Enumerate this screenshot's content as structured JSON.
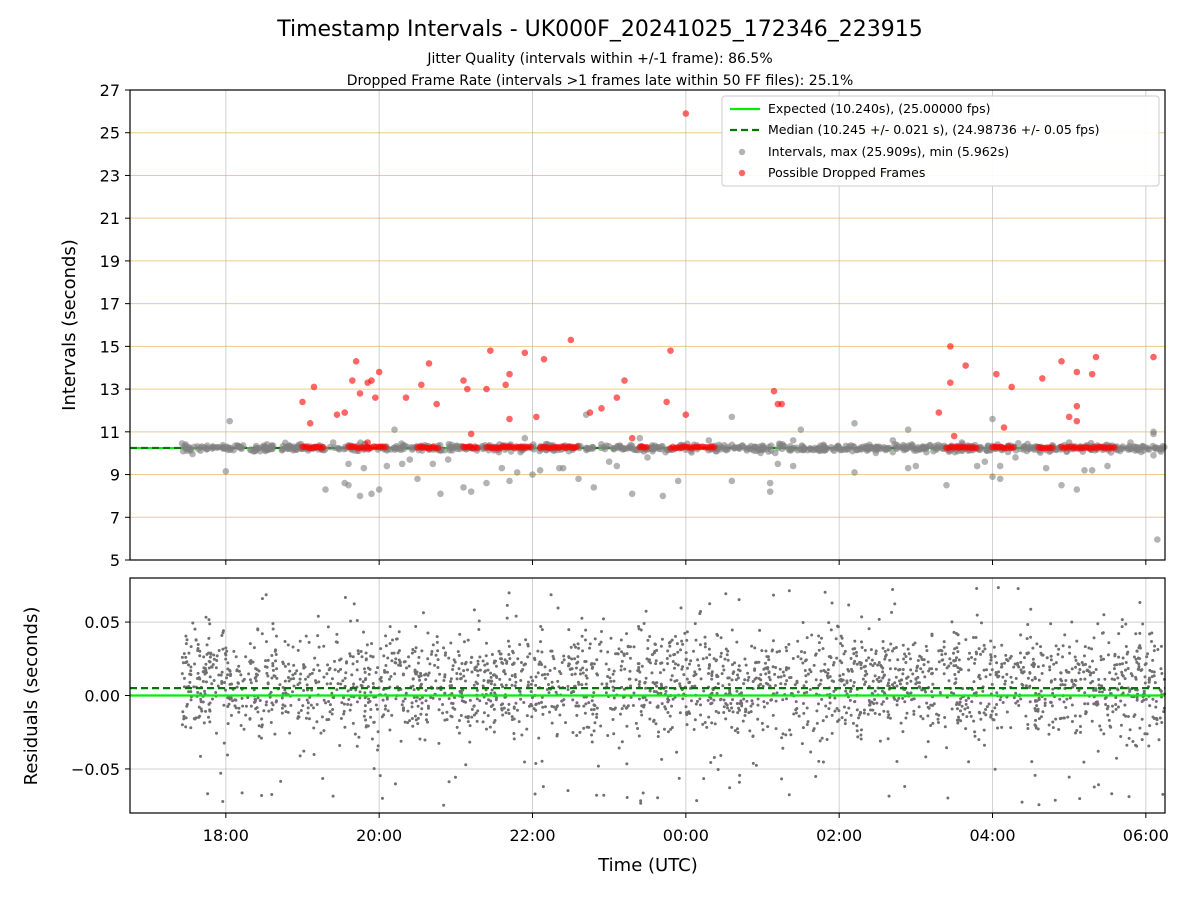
{
  "chart_data": [
    {
      "type": "scatter",
      "title": "Timestamp Intervals - UK000F_20241025_172346_223915",
      "subtitle_1": "Jitter Quality (intervals within +/-1 frame): 86.5%",
      "subtitle_2": "Dropped Frame Rate (intervals >1 frames late within 50 FF files): 25.1%",
      "ylabel": "Intervals (seconds)",
      "ylim": [
        5,
        27
      ],
      "yticks": [
        5,
        7,
        9,
        11,
        13,
        15,
        17,
        19,
        21,
        23,
        25,
        27
      ],
      "xlim_hours": [
        16.75,
        30.25
      ],
      "grid": true,
      "legend_position": "top-right",
      "expected": {
        "value": 10.24,
        "label": "Expected (10.240s), (25.00000 fps)",
        "color": "#00ee00"
      },
      "median": {
        "value": 10.245,
        "label": "Median (10.245 +/- 0.021 s), (24.98736 +/- 0.05 fps)",
        "color": "#007700"
      },
      "intervals_series": {
        "label": "Intervals, max (25.909s), min (5.962s)",
        "color": "#808080",
        "max": 25.909,
        "min": 5.962,
        "points": [
          [
            18.05,
            11.5
          ],
          [
            18.0,
            9.15
          ],
          [
            19.4,
            10.5
          ],
          [
            19.6,
            9.5
          ],
          [
            19.8,
            9.3
          ],
          [
            19.9,
            8.1
          ],
          [
            20.0,
            8.3
          ],
          [
            20.1,
            9.4
          ],
          [
            20.2,
            11.1
          ],
          [
            20.4,
            9.7
          ],
          [
            20.5,
            8.8
          ],
          [
            20.7,
            9.5
          ],
          [
            20.8,
            8.1
          ],
          [
            21.1,
            8.4
          ],
          [
            21.2,
            8.2
          ],
          [
            21.4,
            8.6
          ],
          [
            21.6,
            9.3
          ],
          [
            21.8,
            9.1
          ],
          [
            21.9,
            10.7
          ],
          [
            22.0,
            9.0
          ],
          [
            22.1,
            9.2
          ],
          [
            22.4,
            9.3
          ],
          [
            22.6,
            8.8
          ],
          [
            22.7,
            11.8
          ],
          [
            22.8,
            8.4
          ],
          [
            23.0,
            9.6
          ],
          [
            23.1,
            9.4
          ],
          [
            23.3,
            8.1
          ],
          [
            23.4,
            10.7
          ],
          [
            23.7,
            8.0
          ],
          [
            23.9,
            8.7
          ],
          [
            24.3,
            10.6
          ],
          [
            24.6,
            11.7
          ],
          [
            24.6,
            8.7
          ],
          [
            25.1,
            8.6
          ],
          [
            25.1,
            8.2
          ],
          [
            25.2,
            9.5
          ],
          [
            25.4,
            9.4
          ],
          [
            25.5,
            11.1
          ],
          [
            25.4,
            10.6
          ],
          [
            26.2,
            11.4
          ],
          [
            26.2,
            9.1
          ],
          [
            26.7,
            10.6
          ],
          [
            26.9,
            11.1
          ],
          [
            26.9,
            9.3
          ],
          [
            27.0,
            9.4
          ],
          [
            27.4,
            8.5
          ],
          [
            27.6,
            10.5
          ],
          [
            27.8,
            9.4
          ],
          [
            27.9,
            9.6
          ],
          [
            28.0,
            11.6
          ],
          [
            28.0,
            8.9
          ],
          [
            28.1,
            9.4
          ],
          [
            28.1,
            8.8
          ],
          [
            28.3,
            9.8
          ],
          [
            28.7,
            9.3
          ],
          [
            28.9,
            8.5
          ],
          [
            29.0,
            10.5
          ],
          [
            29.1,
            8.3
          ],
          [
            29.2,
            9.2
          ],
          [
            29.3,
            9.2
          ],
          [
            29.5,
            9.4
          ],
          [
            29.8,
            10.5
          ],
          [
            30.1,
            11.0
          ],
          [
            30.1,
            10.9
          ],
          [
            30.1,
            9.9
          ],
          [
            30.15,
            5.96
          ],
          [
            19.3,
            8.3
          ],
          [
            19.55,
            8.6
          ],
          [
            19.6,
            8.5
          ],
          [
            19.75,
            8.0
          ],
          [
            20.3,
            9.5
          ],
          [
            20.9,
            9.7
          ],
          [
            21.7,
            8.7
          ],
          [
            22.35,
            9.3
          ],
          [
            23.2,
            10.2
          ],
          [
            23.5,
            9.8
          ],
          [
            24.0,
            10.3
          ]
        ]
      },
      "dropped_series": {
        "label": "Possible Dropped Frames",
        "color": "#ff0000",
        "points": [
          [
            19.0,
            12.4
          ],
          [
            19.15,
            13.1
          ],
          [
            19.1,
            11.4
          ],
          [
            19.45,
            11.8
          ],
          [
            19.55,
            11.9
          ],
          [
            19.65,
            13.4
          ],
          [
            19.7,
            14.3
          ],
          [
            19.75,
            12.8
          ],
          [
            19.85,
            13.3
          ],
          [
            19.9,
            13.4
          ],
          [
            19.95,
            12.6
          ],
          [
            20.0,
            13.8
          ],
          [
            19.85,
            10.5
          ],
          [
            20.35,
            12.6
          ],
          [
            20.55,
            13.2
          ],
          [
            20.65,
            14.2
          ],
          [
            20.75,
            12.3
          ],
          [
            21.1,
            13.4
          ],
          [
            21.15,
            13.0
          ],
          [
            21.2,
            10.9
          ],
          [
            21.4,
            13.0
          ],
          [
            21.45,
            14.8
          ],
          [
            21.65,
            13.2
          ],
          [
            21.7,
            13.7
          ],
          [
            21.7,
            11.6
          ],
          [
            21.9,
            14.7
          ],
          [
            22.05,
            11.7
          ],
          [
            22.15,
            14.4
          ],
          [
            22.5,
            15.3
          ],
          [
            22.75,
            11.9
          ],
          [
            22.9,
            12.1
          ],
          [
            23.1,
            12.6
          ],
          [
            23.2,
            13.4
          ],
          [
            23.3,
            10.7
          ],
          [
            23.75,
            12.4
          ],
          [
            23.8,
            14.8
          ],
          [
            24.0,
            11.8
          ],
          [
            24.0,
            25.9
          ],
          [
            25.15,
            12.9
          ],
          [
            25.2,
            12.3
          ],
          [
            25.25,
            12.3
          ],
          [
            27.3,
            11.9
          ],
          [
            27.45,
            13.3
          ],
          [
            27.45,
            15.0
          ],
          [
            27.5,
            10.8
          ],
          [
            27.65,
            14.1
          ],
          [
            28.05,
            13.7
          ],
          [
            28.15,
            11.2
          ],
          [
            28.25,
            13.1
          ],
          [
            28.65,
            13.5
          ],
          [
            29.1,
            11.5
          ],
          [
            28.9,
            14.3
          ],
          [
            29.0,
            11.7
          ],
          [
            29.1,
            12.2
          ],
          [
            29.1,
            13.8
          ],
          [
            29.3,
            13.7
          ],
          [
            29.35,
            14.5
          ],
          [
            30.1,
            14.5
          ]
        ],
        "cluster_value": 10.27
      }
    },
    {
      "type": "scatter",
      "ylabel": "Residuals (seconds)",
      "xlabel": "Time (UTC)",
      "ylim": [
        -0.08,
        0.08
      ],
      "yticks": [
        -0.05,
        0.0,
        0.05
      ],
      "ytick_labels": [
        "−0.05",
        "0.00",
        "0.05"
      ],
      "xtick_labels": [
        "18:00",
        "20:00",
        "22:00",
        "00:00",
        "02:00",
        "04:00",
        "06:00"
      ],
      "xtick_hours": [
        18,
        20,
        22,
        24,
        26,
        28,
        30
      ],
      "xlim_hours": [
        16.75,
        30.25
      ],
      "expected_line": 0.0,
      "median_line": 0.005,
      "data_start_hour": 17.42,
      "data_end_hour": 30.25,
      "residual_color": "#707070",
      "line_color": "#00ee00",
      "median_color": "#007700"
    }
  ]
}
